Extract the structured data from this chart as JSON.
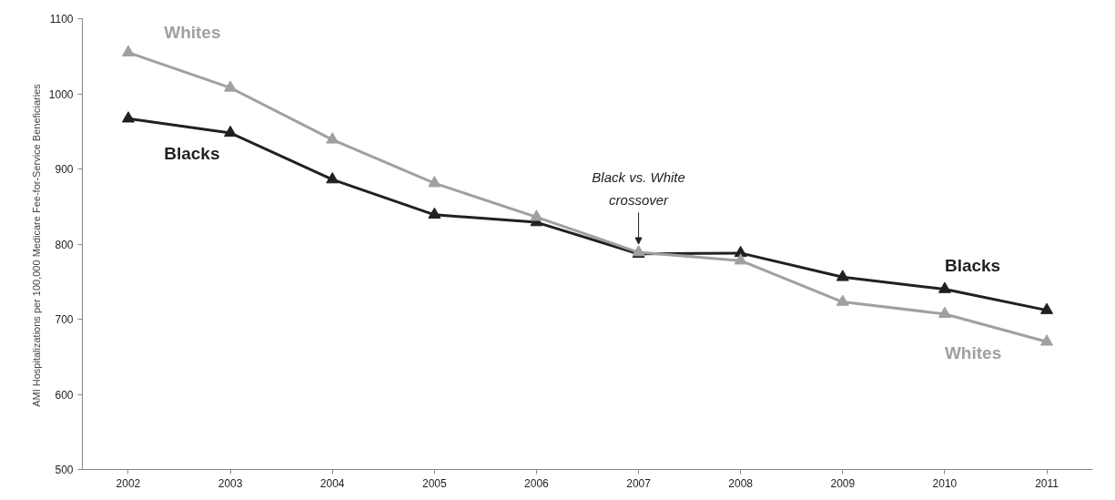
{
  "chart_data": {
    "type": "line",
    "ylabel": "AMI Hospitalizations per 100,000 Medicare Fee-for-Service  Beneficiaries",
    "x": [
      2002,
      2003,
      2004,
      2005,
      2006,
      2007,
      2008,
      2009,
      2010,
      2011
    ],
    "xlim": [
      2001.55,
      2011.45
    ],
    "xticks": [
      2002,
      2003,
      2004,
      2005,
      2006,
      2007,
      2008,
      2009,
      2010,
      2011
    ],
    "ylim": [
      500,
      1100
    ],
    "yticks": [
      500,
      600,
      700,
      800,
      900,
      1000,
      1100
    ],
    "series": [
      {
        "name": "Whites",
        "color": "#a0a0a0",
        "values": [
          1055,
          1008,
          939,
          881,
          836,
          789,
          778,
          723,
          707,
          670
        ]
      },
      {
        "name": "Blacks",
        "color": "#231f20",
        "values": [
          967,
          948,
          886,
          839,
          829,
          787,
          788,
          756,
          740,
          712
        ]
      }
    ],
    "annotations": [
      {
        "text": "Black vs. White\ncrossover",
        "x": 2007,
        "y": 800
      }
    ],
    "marker": "triangle",
    "line_style": "solid",
    "grid": false
  }
}
